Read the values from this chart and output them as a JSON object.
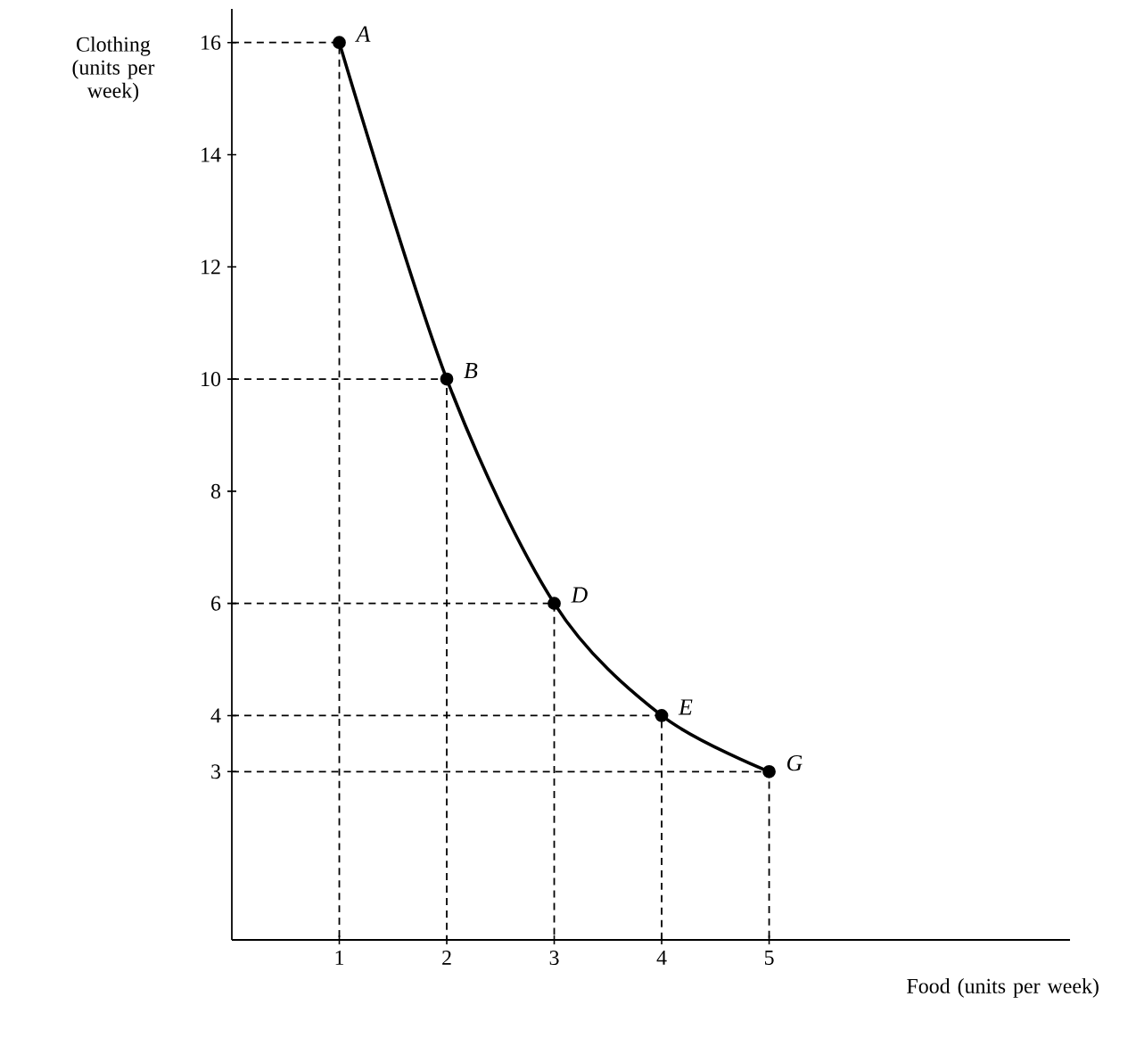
{
  "chart_data": {
    "type": "line",
    "xlabel": "Food (units per week)",
    "ylabel": "Clothing (units per week)",
    "xlim": [
      0,
      7.8
    ],
    "ylim": [
      0,
      16.6
    ],
    "xticks": [
      1,
      2,
      3,
      4,
      5
    ],
    "yticks": [
      3,
      4,
      6,
      8,
      10,
      12,
      14,
      16
    ],
    "series": [
      {
        "color": "#000000",
        "x": [
          1,
          2,
          3,
          4,
          5
        ],
        "values": [
          16,
          10,
          6,
          4,
          3
        ],
        "marker": "circle",
        "line_style": "solid"
      },
      {
        "color": "#000000",
        "x": [
          0,
          1,
          1
        ],
        "values": [
          16,
          16,
          0
        ],
        "marker": "none",
        "line_style": "dashed"
      },
      {
        "color": "#000000",
        "x": [
          0,
          2,
          2
        ],
        "values": [
          10,
          10,
          0
        ],
        "marker": "none",
        "line_style": "dashed"
      },
      {
        "color": "#000000",
        "x": [
          0,
          3,
          3
        ],
        "values": [
          6,
          6,
          0
        ],
        "marker": "none",
        "line_style": "dashed"
      },
      {
        "color": "#000000",
        "x": [
          0,
          4,
          4
        ],
        "values": [
          4,
          4,
          0
        ],
        "marker": "none",
        "line_style": "dashed"
      },
      {
        "color": "#000000",
        "x": [
          0,
          5,
          5
        ],
        "values": [
          3,
          3,
          0
        ],
        "marker": "none",
        "line_style": "dashed"
      }
    ],
    "annotations": [
      {
        "text": "A",
        "x": 1,
        "y": 16
      },
      {
        "text": "B",
        "x": 2,
        "y": 10
      },
      {
        "text": "D",
        "x": 3,
        "y": 6
      },
      {
        "text": "E",
        "x": 4,
        "y": 4
      },
      {
        "text": "G",
        "x": 5,
        "y": 3
      }
    ]
  }
}
